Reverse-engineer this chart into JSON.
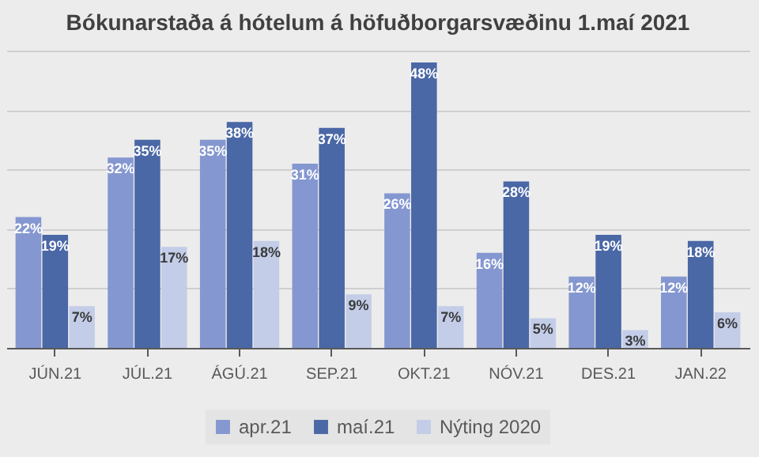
{
  "chart_data": {
    "type": "bar",
    "title": "Bókunarstaða á hótelum á höfuðborgarsvæðinu 1.maí 2021",
    "categories": [
      "JÚN.21",
      "JÚL.21",
      "ÁGÚ.21",
      "SEP.21",
      "OKT.21",
      "NÓV.21",
      "DES.21",
      "JAN.22"
    ],
    "series": [
      {
        "name": "apr.21",
        "color": "#8497d0",
        "values": [
          22,
          32,
          35,
          31,
          26,
          16,
          12,
          12
        ],
        "value_labels": [
          "22%",
          "32%",
          "35%",
          "31%",
          "26%",
          "16%",
          "12%",
          "12%"
        ]
      },
      {
        "name": "maí.21",
        "color": "#4a67a6",
        "values": [
          19,
          35,
          38,
          37,
          48,
          28,
          19,
          18
        ],
        "value_labels": [
          "19%",
          "35%",
          "38%",
          "37%",
          "48%",
          "28%",
          "19%",
          "18%"
        ]
      },
      {
        "name": "Nýting 2020",
        "color": "#c3cde8",
        "values": [
          7,
          17,
          18,
          9,
          7,
          5,
          3,
          6
        ],
        "value_labels": [
          "7%",
          "17%",
          "18%",
          "9%",
          "7%",
          "5%",
          "3%",
          "6%"
        ]
      }
    ],
    "grid": "y",
    "legend": "bottom",
    "tick_labels": "x"
  }
}
